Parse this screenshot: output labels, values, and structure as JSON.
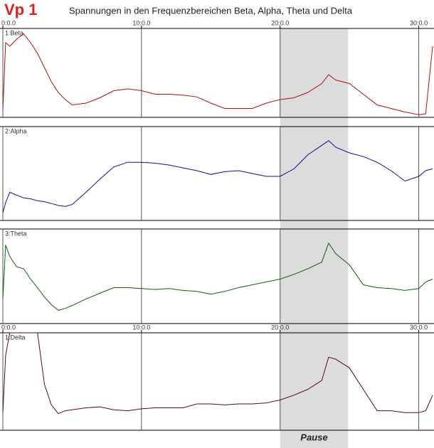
{
  "header": {
    "label": "Vp 1",
    "title": "Spannungen in den Frequenzbereichen Beta, Alpha, Theta und Delta"
  },
  "pause": {
    "label": "Pause",
    "start": 20,
    "end": 24.9
  },
  "chart_data": [
    {
      "type": "line",
      "title": "1:Beta",
      "color": "#b01010",
      "x": [
        0,
        0.2,
        0.5,
        1,
        1.5,
        2,
        2.5,
        3,
        3.5,
        4,
        4.5,
        5,
        6,
        7,
        8,
        9,
        10,
        11,
        12,
        13,
        14,
        15,
        16,
        17,
        18,
        19,
        20,
        21,
        22,
        23,
        23.5,
        24,
        25,
        26,
        27,
        28,
        29,
        30,
        30.5,
        31
      ],
      "values": [
        8,
        84,
        80,
        88,
        94,
        84,
        72,
        56,
        40,
        28,
        20,
        14,
        16,
        22,
        30,
        32,
        30,
        26,
        26,
        25,
        23,
        16,
        10,
        10,
        10,
        16,
        20,
        22,
        28,
        38,
        48,
        42,
        38,
        26,
        14,
        10,
        6,
        3,
        4,
        80
      ],
      "xlim": [
        0,
        31.1
      ],
      "ylim": [
        0,
        100
      ],
      "xgrid": [
        10,
        20,
        30
      ],
      "xticks": [
        {
          "value": 0,
          "label": "0:0.0"
        },
        {
          "value": 10,
          "label": "10:0.0"
        },
        {
          "value": 20,
          "label": "20:0.0"
        },
        {
          "value": 30,
          "label": "30:0.0"
        }
      ]
    },
    {
      "type": "line",
      "title": "2:Alpha",
      "color": "#10108a",
      "x": [
        0,
        0.2,
        0.5,
        1,
        1.5,
        2,
        2.5,
        3,
        3.5,
        4,
        4.5,
        5,
        6,
        7,
        8,
        9,
        10,
        11,
        12,
        13,
        14,
        15,
        16,
        17,
        18,
        19,
        20,
        21,
        22,
        23,
        23.5,
        24,
        25,
        26,
        27,
        28,
        29,
        30,
        30.5,
        31
      ],
      "values": [
        8,
        19,
        30,
        27,
        24,
        23,
        21,
        20,
        18,
        16,
        15,
        17,
        30,
        44,
        57,
        62,
        62,
        61,
        59,
        56,
        53,
        49,
        52,
        53,
        50,
        47,
        47,
        55,
        70,
        80,
        85,
        78,
        72,
        68,
        62,
        53,
        42,
        47,
        53,
        55
      ],
      "xlim": [
        0,
        31.1
      ],
      "ylim": [
        0,
        100
      ],
      "xgrid": [
        10,
        20,
        30
      ]
    },
    {
      "type": "line",
      "title": "3:Theta",
      "color": "#106010",
      "x": [
        0,
        0.2,
        0.5,
        1,
        1.5,
        2,
        2.5,
        3,
        3.5,
        4,
        4.5,
        5,
        6,
        7,
        8,
        9,
        10,
        11,
        12,
        13,
        14,
        15,
        16,
        17,
        18,
        19,
        20,
        21,
        22,
        23,
        23.5,
        24,
        25,
        26,
        27,
        28,
        29,
        30,
        30.5,
        31
      ],
      "values": [
        26,
        83,
        71,
        60,
        58,
        47,
        38,
        28,
        20,
        14,
        16,
        19,
        26,
        32,
        38,
        38,
        37,
        36,
        37,
        35,
        34,
        31,
        34,
        38,
        41,
        44,
        47,
        52,
        58,
        65,
        85,
        74,
        62,
        41,
        38,
        37,
        35,
        37,
        44,
        47
      ],
      "xlim": [
        0,
        31.1
      ],
      "ylim": [
        0,
        100
      ],
      "xgrid": [
        10,
        20,
        30
      ]
    },
    {
      "type": "line",
      "title": "1:Delta",
      "color": "#5a0a0a",
      "x": [
        0,
        0.2,
        0.5,
        1,
        1.5,
        2,
        2.5,
        3,
        3.5,
        4,
        4.5,
        5,
        6,
        7,
        8,
        9,
        10,
        11,
        12,
        13,
        14,
        15,
        16,
        17,
        18,
        19,
        20,
        21,
        22,
        23,
        23.5,
        24,
        25,
        26,
        27,
        28,
        29,
        30,
        30.5,
        31
      ],
      "values": [
        18,
        77,
        100,
        100,
        100,
        100,
        100,
        47,
        26,
        17,
        20,
        21,
        23,
        24,
        21,
        20,
        22,
        23,
        23,
        23,
        27,
        27,
        26,
        27,
        27,
        28,
        31,
        36,
        42,
        51,
        75,
        73,
        64,
        42,
        20,
        20,
        18,
        18,
        20,
        36
      ],
      "xlim": [
        0,
        31.1
      ],
      "ylim": [
        0,
        100
      ],
      "xgrid": [
        10,
        20,
        30
      ],
      "xticks": [
        {
          "value": 0,
          "label": "0:0.0"
        },
        {
          "value": 10,
          "label": "10:0.0"
        },
        {
          "value": 20,
          "label": "20:0.0"
        },
        {
          "value": 30,
          "label": "30:0.0"
        }
      ]
    }
  ]
}
